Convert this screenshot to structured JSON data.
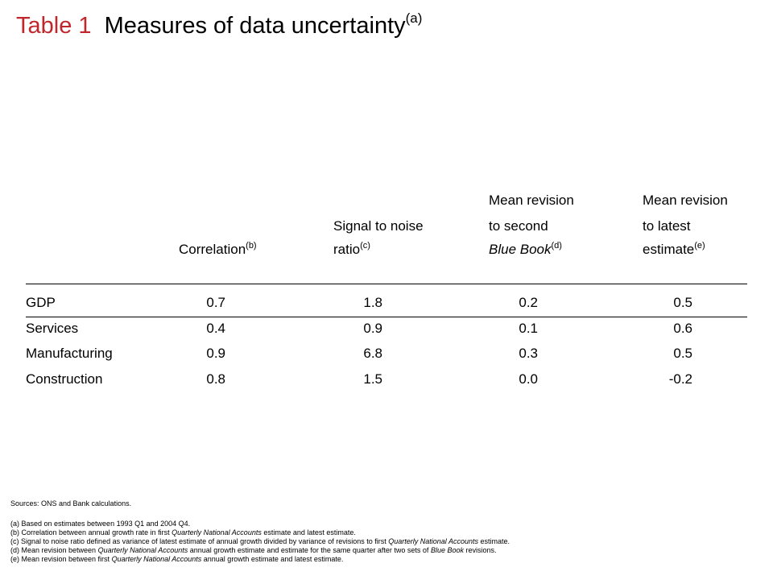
{
  "title": {
    "number": "Table 1",
    "text": "Measures of data uncertainty",
    "superscript": "(a)"
  },
  "columns": [
    {
      "lines": [
        "",
        "",
        "Correlation"
      ],
      "note": "(b)",
      "italic_last": false
    },
    {
      "lines": [
        "",
        "Signal to noise",
        "ratio"
      ],
      "note": "(c)",
      "italic_last": false
    },
    {
      "lines": [
        "Mean revision",
        "to second",
        "Blue Book"
      ],
      "note": "(d)",
      "italic_last": true
    },
    {
      "lines": [
        "Mean revision",
        "to latest",
        "estimate"
      ],
      "note": "(e)",
      "italic_last": false
    }
  ],
  "rows": [
    {
      "label": "GDP",
      "values": [
        "0.7",
        "1.8",
        "0.2",
        "0.5"
      ]
    },
    {
      "label": "Services",
      "values": [
        "0.4",
        "0.9",
        "0.1",
        "0.6"
      ]
    },
    {
      "label": "Manufacturing",
      "values": [
        "0.9",
        "6.8",
        "0.3",
        "0.5"
      ]
    },
    {
      "label": "Construction",
      "values": [
        "0.8",
        "1.5",
        "0.0",
        "-0.2"
      ]
    }
  ],
  "sources": "Sources:  ONS and Bank calculations.",
  "footnotes": [
    {
      "mark": "(a)",
      "parts": [
        {
          "t": "Based on estimates between 1993 Q1 and 2004 Q4."
        }
      ]
    },
    {
      "mark": "(b)",
      "parts": [
        {
          "t": "Correlation between annual growth rate in first "
        },
        {
          "t": "Quarterly National Accounts",
          "i": true
        },
        {
          "t": " estimate and latest estimate."
        }
      ]
    },
    {
      "mark": "(c)",
      "parts": [
        {
          "t": "Signal to noise ratio defined as variance of latest estimate of annual growth divided by variance of revisions to first "
        },
        {
          "t": "Quarterly National Accounts",
          "i": true
        },
        {
          "t": " estimate."
        }
      ]
    },
    {
      "mark": "(d)",
      "parts": [
        {
          "t": "Mean revision between "
        },
        {
          "t": "Quarterly National Accounts",
          "i": true
        },
        {
          "t": " annual growth estimate and estimate for the same quarter after two sets of "
        },
        {
          "t": "Blue Book",
          "i": true
        },
        {
          "t": " revisions."
        }
      ]
    },
    {
      "mark": "(e)",
      "parts": [
        {
          "t": "Mean revision between first "
        },
        {
          "t": "Quarterly National Accounts",
          "i": true
        },
        {
          "t": " annual growth estimate and latest estimate."
        }
      ]
    }
  ]
}
